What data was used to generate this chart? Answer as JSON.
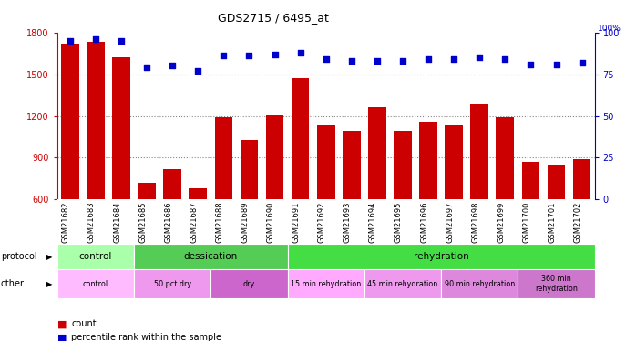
{
  "title": "GDS2715 / 6495_at",
  "samples": [
    "GSM21682",
    "GSM21683",
    "GSM21684",
    "GSM21685",
    "GSM21686",
    "GSM21687",
    "GSM21688",
    "GSM21689",
    "GSM21690",
    "GSM21691",
    "GSM21692",
    "GSM21693",
    "GSM21694",
    "GSM21695",
    "GSM21696",
    "GSM21697",
    "GSM21698",
    "GSM21699",
    "GSM21700",
    "GSM21701",
    "GSM21702"
  ],
  "counts": [
    1720,
    1730,
    1620,
    720,
    820,
    680,
    1190,
    1030,
    1210,
    1470,
    1130,
    1090,
    1260,
    1090,
    1160,
    1130,
    1290,
    1190,
    870,
    850,
    890
  ],
  "percentile": [
    95,
    96,
    95,
    79,
    80,
    77,
    86,
    86,
    87,
    88,
    84,
    83,
    83,
    83,
    84,
    84,
    85,
    84,
    81,
    81,
    82
  ],
  "ylim_left": [
    600,
    1800
  ],
  "ylim_right": [
    0,
    100
  ],
  "yticks_left": [
    600,
    900,
    1200,
    1500,
    1800
  ],
  "yticks_right": [
    0,
    25,
    50,
    75,
    100
  ],
  "grid_lines": [
    900,
    1200,
    1500
  ],
  "bar_color": "#cc0000",
  "dot_color": "#0000cc",
  "grid_color": "#888888",
  "proto_data": [
    [
      0,
      3,
      "control",
      "#aaffaa"
    ],
    [
      3,
      9,
      "dessication",
      "#55cc55"
    ],
    [
      9,
      21,
      "rehydration",
      "#44dd44"
    ]
  ],
  "other_data": [
    [
      0,
      3,
      "control",
      "#ffbbff"
    ],
    [
      3,
      6,
      "50 pct dry",
      "#ee99ee"
    ],
    [
      6,
      9,
      "dry",
      "#cc66cc"
    ],
    [
      9,
      12,
      "15 min rehydration",
      "#ffaaff"
    ],
    [
      12,
      15,
      "45 min rehydration",
      "#ee99ee"
    ],
    [
      15,
      18,
      "90 min rehydration",
      "#dd88dd"
    ],
    [
      18,
      21,
      "360 min\nrehydration",
      "#cc77cc"
    ]
  ],
  "xlabel_color": "#cc0000",
  "ylabel_right_color": "#0000cc",
  "bg_color": "#ffffff",
  "tick_bg": "#cccccc"
}
